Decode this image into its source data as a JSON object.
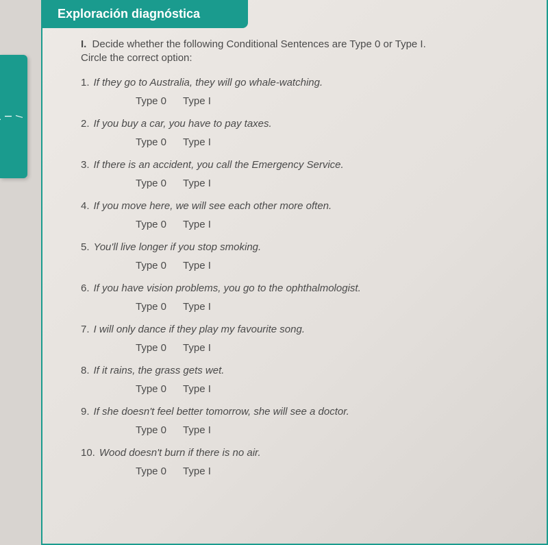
{
  "leftTab": {
    "line1": "/",
    "line2": "l",
    "line3": "al"
  },
  "header": {
    "title": "Exploración diagnóstica"
  },
  "instructions": {
    "num": "I.",
    "line1": "Decide whether the following Conditional Sentences are Type 0 or Type I.",
    "line2": "Circle the correct option:"
  },
  "options": {
    "opt0": "Type 0",
    "opt1": "Type I"
  },
  "questions": [
    {
      "n": "1.",
      "text": "If they go to Australia, they will go whale-watching."
    },
    {
      "n": "2.",
      "text": "If you buy a car, you have to pay taxes."
    },
    {
      "n": "3.",
      "text": "If there is an accident, you call the Emergency Service."
    },
    {
      "n": "4.",
      "text": "If you move here, we will see each other more often."
    },
    {
      "n": "5.",
      "text": "You'll live longer if you stop smoking."
    },
    {
      "n": "6.",
      "text": "If you have vision problems, you go to the ophthalmologist."
    },
    {
      "n": "7.",
      "text": "I will only dance if they play my favourite song."
    },
    {
      "n": "8.",
      "text": "If it rains, the grass gets wet."
    },
    {
      "n": "9.",
      "text": "If she doesn't feel better tomorrow, she will see a doctor."
    },
    {
      "n": "10.",
      "text": "Wood doesn't burn if there is no air."
    }
  ],
  "colors": {
    "accent": "#1a9b8e",
    "pageBg": "#e4e0dc",
    "text": "#4a4a4a"
  }
}
